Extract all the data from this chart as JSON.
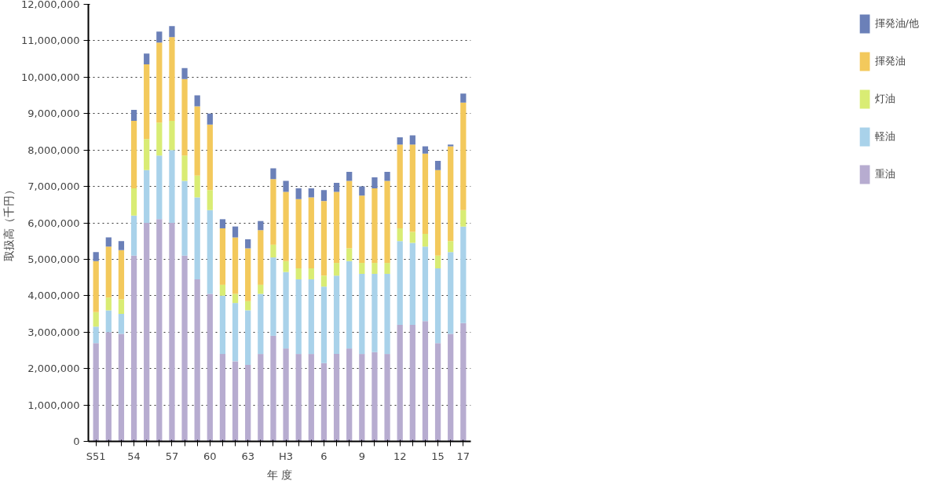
{
  "chart_data": {
    "type": "bar",
    "stacked": true,
    "xlabel": "年 度",
    "ylabel": "取扱高（千円）",
    "categories": [
      "S51",
      null,
      null,
      "54",
      null,
      null,
      "57",
      null,
      null,
      "60",
      null,
      null,
      "63",
      null,
      null,
      "H3",
      null,
      null,
      "6",
      null,
      null,
      "9",
      null,
      null,
      "12",
      null,
      null,
      "15",
      null,
      "17"
    ],
    "series": [
      {
        "name": "重油",
        "color": "#b7acd0",
        "values": [
          2700000,
          3000000,
          2950000,
          5100000,
          6000000,
          6100000,
          6000000,
          5100000,
          4450000,
          4050000,
          2400000,
          2200000,
          2100000,
          2400000,
          2900000,
          2550000,
          2400000,
          2400000,
          2150000,
          2400000,
          2550000,
          2400000,
          2450000,
          2400000,
          3200000,
          3200000,
          3300000,
          2700000,
          2950000,
          3250000
        ]
      },
      {
        "name": "軽油",
        "color": "#a9d2ea",
        "values": [
          450000,
          600000,
          550000,
          1100000,
          1450000,
          1750000,
          2000000,
          2050000,
          2250000,
          2300000,
          1600000,
          1600000,
          1500000,
          1650000,
          2150000,
          2100000,
          2050000,
          2050000,
          2100000,
          2150000,
          2400000,
          2200000,
          2150000,
          2200000,
          2300000,
          2250000,
          2050000,
          2050000,
          2250000,
          2650000
        ]
      },
      {
        "name": "灯油",
        "color": "#d9ec74",
        "values": [
          400000,
          350000,
          400000,
          750000,
          850000,
          900000,
          800000,
          700000,
          600000,
          550000,
          300000,
          250000,
          250000,
          250000,
          350000,
          300000,
          300000,
          300000,
          300000,
          350000,
          350000,
          300000,
          300000,
          300000,
          350000,
          300000,
          350000,
          350000,
          300000,
          450000
        ]
      },
      {
        "name": "揮発油",
        "color": "#f3c95c",
        "values": [
          1400000,
          1400000,
          1350000,
          1850000,
          2050000,
          2200000,
          2300000,
          2100000,
          1900000,
          1800000,
          1550000,
          1550000,
          1450000,
          1500000,
          1800000,
          1900000,
          1900000,
          1950000,
          2050000,
          1950000,
          1850000,
          1850000,
          2050000,
          2250000,
          2300000,
          2400000,
          2200000,
          2350000,
          2600000,
          2950000
        ]
      },
      {
        "name": "揮発油/他",
        "color": "#6b80b8",
        "values": [
          250000,
          250000,
          250000,
          300000,
          300000,
          300000,
          300000,
          300000,
          300000,
          300000,
          250000,
          300000,
          250000,
          250000,
          300000,
          300000,
          300000,
          250000,
          300000,
          250000,
          250000,
          250000,
          300000,
          250000,
          200000,
          250000,
          200000,
          250000,
          50000,
          250000
        ]
      }
    ],
    "ylim": [
      0,
      12000000
    ],
    "yticks": [
      0,
      {
        "value": 1000000,
        "label": "1,000,000"
      },
      {
        "value": 2000000,
        "label": "2,000,000"
      },
      {
        "value": 3000000,
        "label": "3,000,000"
      },
      {
        "value": 4000000,
        "label": "4,000,000"
      },
      {
        "value": 5000000,
        "label": "5,000,000"
      },
      {
        "value": 6000000,
        "label": "6,000,000"
      },
      {
        "value": 7000000,
        "label": "7,000,000"
      },
      {
        "value": 8000000,
        "label": "8,000,000"
      },
      {
        "value": 9000000,
        "label": "9,000,000"
      },
      {
        "value": 10000000,
        "label": "10,000,000"
      },
      {
        "value": 11000000,
        "label": "11,000,000"
      },
      {
        "value": 12000000,
        "label": "12,000,000"
      }
    ],
    "grid": "y",
    "legend": "right"
  }
}
